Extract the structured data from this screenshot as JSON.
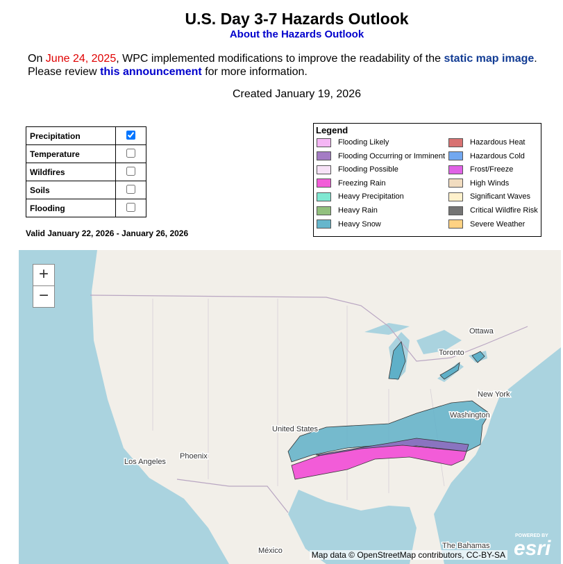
{
  "header": {
    "title": "U.S. Day 3-7 Hazards Outlook",
    "link": "About the Hazards Outlook"
  },
  "notice": {
    "prefix": "On",
    "date": "June 24, 2025",
    "text1": ", WPC implemented modifications to improve the readability of the",
    "link1": "static map image",
    "text2": ". Please review",
    "link2": "this announcement",
    "text3": "for more information."
  },
  "created": "Created January 19, 2026",
  "toggles": [
    {
      "label": "Precipitation",
      "checked": true
    },
    {
      "label": "Temperature",
      "checked": false
    },
    {
      "label": "Wildfires",
      "checked": false
    },
    {
      "label": "Soils",
      "checked": false
    },
    {
      "label": "Flooding",
      "checked": false
    }
  ],
  "valid": "Valid January 22, 2026 - January 26, 2026",
  "legend": {
    "title": "Legend",
    "items": [
      {
        "name": "Flooding Likely",
        "color": "#f5b6f5"
      },
      {
        "name": "Flooding Occurring or Imminent",
        "color": "#a47cc4"
      },
      {
        "name": "Flooding Possible",
        "color": "#f7e2f7"
      },
      {
        "name": "Freezing Rain",
        "color": "#f25cd8"
      },
      {
        "name": "Heavy Precipitation",
        "color": "#7fe8d2"
      },
      {
        "name": "Heavy Rain",
        "color": "#92c07e"
      },
      {
        "name": "Heavy Snow",
        "color": "#66b6cc"
      },
      {
        "name": "Hazardous Heat",
        "color": "#d87272"
      },
      {
        "name": "Hazardous Cold",
        "color": "#72a8f0"
      },
      {
        "name": "Frost/Freeze",
        "color": "#e062e6"
      },
      {
        "name": "High Winds",
        "color": "#f1dcc0"
      },
      {
        "name": "Significant Waves",
        "color": "#fff1cc"
      },
      {
        "name": "Critical Wildfire Risk",
        "color": "#747474"
      },
      {
        "name": "Severe Weather",
        "color": "#ffd283"
      }
    ]
  },
  "map": {
    "zoom_in": "+",
    "zoom_out": "−",
    "labels": {
      "ottawa": "Ottawa",
      "toronto": "Toronto",
      "new_york": "New York",
      "washington": "Washington",
      "united_states": "United States",
      "los_angeles": "Los Angeles",
      "phoenix": "Phoenix",
      "mexico": "México",
      "bahamas": "The Bahamas"
    },
    "attribution": "Map data © OpenStreetMap contributors, CC-BY-SA",
    "powered_by": "POWERED BY",
    "esri": "esri"
  }
}
